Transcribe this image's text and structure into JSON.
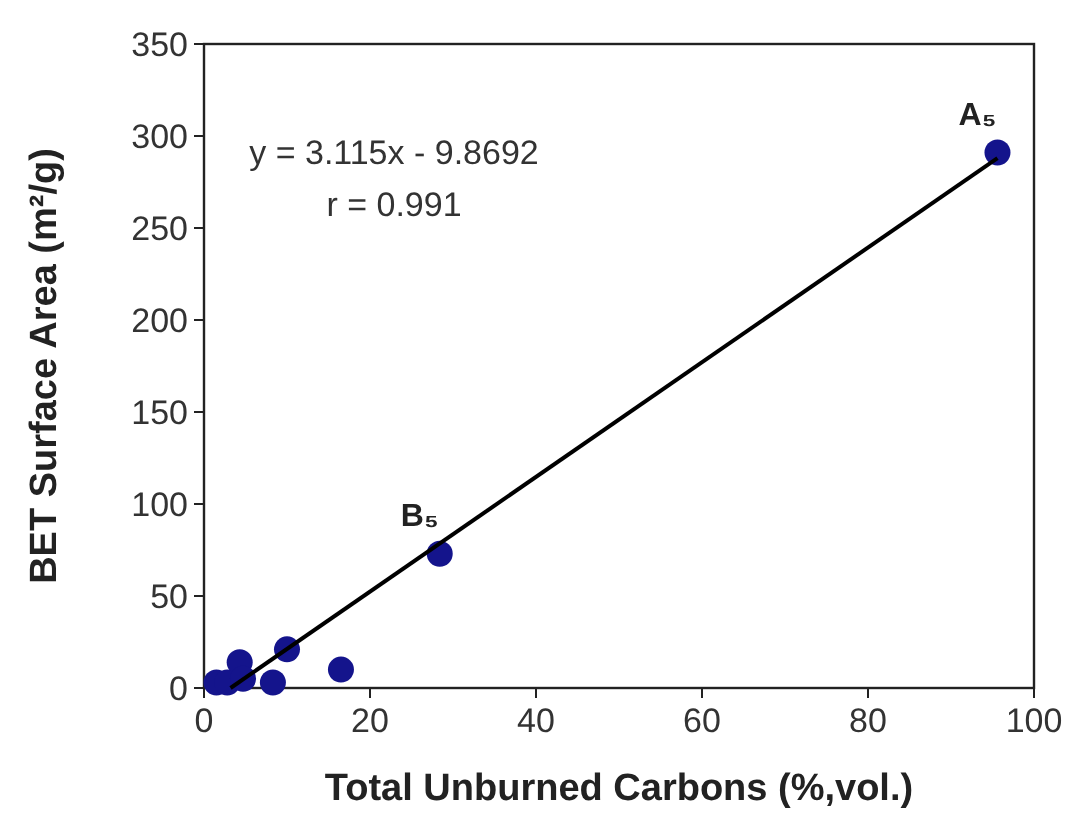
{
  "chart_data": {
    "type": "scatter",
    "xlabel": "Total Unburned Carbons (%,vol.)",
    "ylabel": "BET Surface Area (m²/g)",
    "xlim": [
      0,
      100
    ],
    "ylim": [
      0,
      350
    ],
    "xticks": [
      0,
      20,
      40,
      60,
      80,
      100
    ],
    "yticks": [
      0,
      50,
      100,
      150,
      200,
      250,
      300,
      350
    ],
    "grid": false,
    "series": [
      {
        "color": "#14148c",
        "marker": "circle",
        "x": [
          1.5,
          2.8,
          4.3,
          4.7,
          8.3,
          10,
          16.5,
          28.4,
          95.6
        ],
        "values": [
          3,
          3,
          14,
          5,
          3,
          21,
          10,
          73,
          291
        ]
      },
      {
        "type": "line",
        "color": "#000000",
        "line_style": "solid",
        "marker": "none",
        "x": [
          3.2,
          95.6
        ],
        "values": [
          0,
          288
        ]
      }
    ],
    "annotations": [
      {
        "text": "y = 3.115x - 9.8692"
      },
      {
        "text": "r = 0.991"
      },
      {
        "text": "A₅",
        "x": 95.6,
        "y": 291
      },
      {
        "text": "B₅",
        "x": 28.4,
        "y": 73
      }
    ]
  }
}
